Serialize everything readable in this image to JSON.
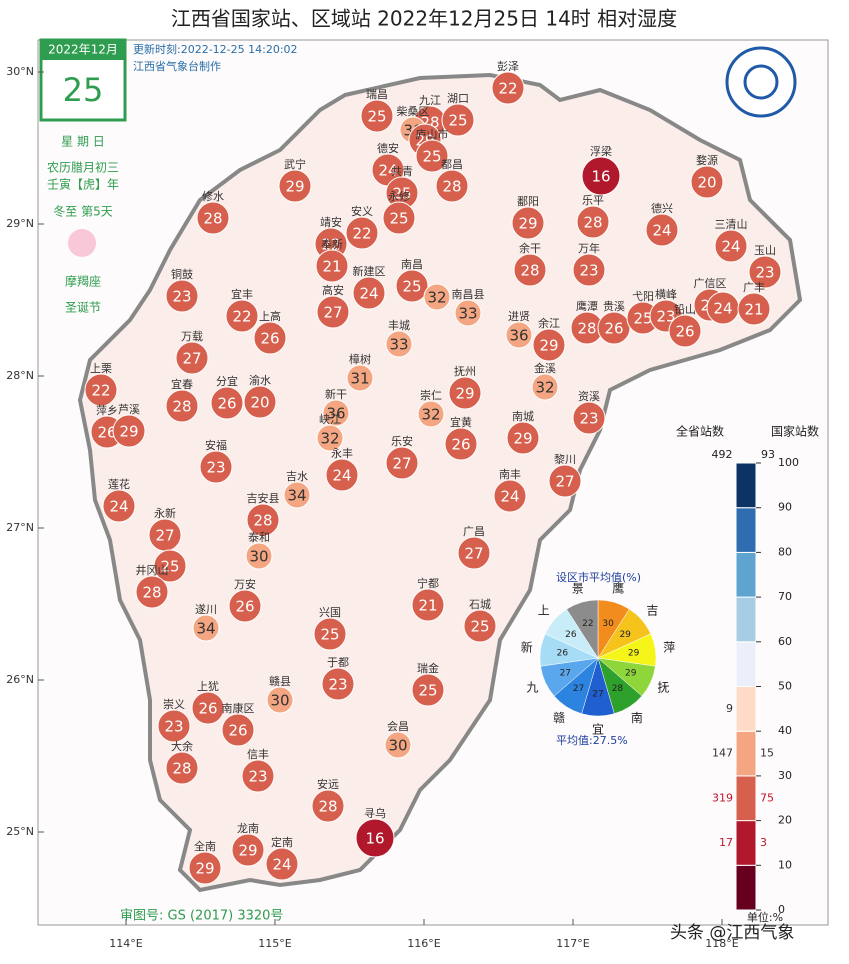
{
  "header": {
    "title": "江西省国家站、区域站   2022年12月25日 14时   相对湿度",
    "update_time": "更新时刻:2022-12-25 14:20:02",
    "producer": "江西省气象台制作"
  },
  "calendar": {
    "month": "2022年12月",
    "day": "25",
    "weekday": "星 期 日",
    "lunar": "农历腊月初三",
    "year": "壬寅【虎】年",
    "solar_term": "冬至  第5天",
    "zodiac": "摩羯座",
    "festival": "圣诞节"
  },
  "map_axes": {
    "lat_ticks": [
      {
        "value": 30,
        "label": "30°N"
      },
      {
        "value": 29,
        "label": "29°N"
      },
      {
        "value": 28,
        "label": "28°N"
      },
      {
        "value": 27,
        "label": "27°N"
      },
      {
        "value": 26,
        "label": "26°N"
      },
      {
        "value": 25,
        "label": "25°N"
      }
    ],
    "lon_ticks": [
      {
        "value": 114,
        "label": "114°E"
      },
      {
        "value": 115,
        "label": "115°E"
      },
      {
        "value": 116,
        "label": "116°E"
      },
      {
        "value": 117,
        "label": "117°E"
      },
      {
        "value": 118,
        "label": "118°E"
      }
    ]
  },
  "stations": [
    {
      "name": "彭泽",
      "value": 22
    },
    {
      "name": "瑞昌",
      "value": 25
    },
    {
      "name": "九江",
      "value": 28
    },
    {
      "name": "湖口",
      "value": 25
    },
    {
      "name": "柴桑区",
      "value": 30
    },
    {
      "value": 29
    },
    {
      "name": "庐山市",
      "value": 25
    },
    {
      "name": "德安",
      "value": 24
    },
    {
      "name": "共青",
      "value": 25
    },
    {
      "name": "都昌",
      "value": 28
    },
    {
      "name": "武宁",
      "value": 29
    },
    {
      "name": "修水",
      "value": 28
    },
    {
      "name": "永修",
      "value": 25
    },
    {
      "name": "靖安",
      "value": 22
    },
    {
      "name": "安义",
      "value": 22
    },
    {
      "name": "奉新",
      "value": 21
    },
    {
      "name": "鄱阳",
      "value": 29
    },
    {
      "name": "浮梁",
      "value": 16
    },
    {
      "name": "乐平",
      "value": 28
    },
    {
      "name": "婺源",
      "value": 20
    },
    {
      "name": "德兴",
      "value": 24
    },
    {
      "name": "三清山",
      "value": 24
    },
    {
      "name": "玉山",
      "value": 23
    },
    {
      "name": "万年",
      "value": 23
    },
    {
      "name": "余干",
      "value": 28
    },
    {
      "name": "新建区",
      "value": 24
    },
    {
      "name": "南昌",
      "value": 25
    },
    {
      "value": 32
    },
    {
      "name": "南昌县",
      "value": 33
    },
    {
      "name": "铜鼓",
      "value": 23
    },
    {
      "name": "宜丰",
      "value": 22
    },
    {
      "name": "上高",
      "value": 26
    },
    {
      "name": "高安",
      "value": 27
    },
    {
      "name": "丰城",
      "value": 33
    },
    {
      "name": "进贤",
      "value": 36
    },
    {
      "name": "余江",
      "value": 29
    },
    {
      "name": "鹰潭",
      "value": 28
    },
    {
      "name": "贵溪",
      "value": 26
    },
    {
      "name": "弋阳",
      "value": 25
    },
    {
      "name": "横峰",
      "value": 23
    },
    {
      "name": "铅山",
      "value": 26
    },
    {
      "name": "广信区",
      "value": 21
    },
    {
      "value": 24
    },
    {
      "name": "广丰",
      "value": 21
    },
    {
      "name": "万载",
      "value": 27
    },
    {
      "name": "宜春",
      "value": 28
    },
    {
      "name": "分宜",
      "value": 26
    },
    {
      "name": "渝水",
      "value": 20
    },
    {
      "name": "樟树",
      "value": 31
    },
    {
      "name": "新干",
      "value": 36
    },
    {
      "name": "抚州",
      "value": 29
    },
    {
      "name": "金溪",
      "value": 32
    },
    {
      "name": "上栗",
      "value": 22
    },
    {
      "name": "萍乡",
      "value": 26
    },
    {
      "name": "芦溪",
      "value": 29
    },
    {
      "name": "崇仁",
      "value": 32
    },
    {
      "name": "宜黄",
      "value": 26
    },
    {
      "name": "南城",
      "value": 29
    },
    {
      "name": "资溪",
      "value": 23
    },
    {
      "name": "峡江",
      "value": 32
    },
    {
      "name": "永丰",
      "value": 24
    },
    {
      "name": "乐安",
      "value": 27
    },
    {
      "name": "安福",
      "value": 23
    },
    {
      "name": "吉水",
      "value": 34
    },
    {
      "name": "南丰",
      "value": 24
    },
    {
      "name": "黎川",
      "value": 27
    },
    {
      "name": "莲花",
      "value": 24
    },
    {
      "name": "永新",
      "value": 27
    },
    {
      "name": "吉安县",
      "value": 28
    },
    {
      "name": "泰和",
      "value": 30
    },
    {
      "name": "广昌",
      "value": 27
    },
    {
      "value": 25
    },
    {
      "name": "井冈山",
      "value": 28
    },
    {
      "name": "遂川",
      "value": 34
    },
    {
      "name": "万安",
      "value": 26
    },
    {
      "name": "宁都",
      "value": 21
    },
    {
      "name": "石城",
      "value": 25
    },
    {
      "name": "兴国",
      "value": 25
    },
    {
      "name": "于都",
      "value": 23
    },
    {
      "name": "瑞金",
      "value": 25
    },
    {
      "name": "赣县",
      "value": 30
    },
    {
      "name": "上犹",
      "value": 26
    },
    {
      "name": "崇义",
      "value": 23
    },
    {
      "name": "南康区",
      "value": 26
    },
    {
      "name": "会昌",
      "value": 30
    },
    {
      "name": "大余",
      "value": 28
    },
    {
      "name": "信丰",
      "value": 23
    },
    {
      "name": "安远",
      "value": 28
    },
    {
      "name": "寻乌",
      "value": 16
    },
    {
      "name": "龙南",
      "value": 29
    },
    {
      "name": "全南",
      "value": 29
    },
    {
      "name": "定南",
      "value": 24
    }
  ],
  "pie": {
    "title": "设区市平均值(%)",
    "average": "平均值:27.5%",
    "slices": [
      {
        "name": "鹰",
        "value": 30,
        "color": "#f28c1c"
      },
      {
        "name": "吉",
        "value": 29,
        "color": "#f6c21c"
      },
      {
        "name": "萍",
        "value": 29,
        "color": "#f5f51a"
      },
      {
        "name": "抚",
        "value": 29,
        "color": "#8fd63a"
      },
      {
        "name": "南",
        "value": 28,
        "color": "#2ea02c"
      },
      {
        "name": "宜",
        "value": 27,
        "color": "#1f5fd0"
      },
      {
        "name": "赣",
        "value": 27,
        "color": "#2c83e0"
      },
      {
        "name": "九",
        "value": 27,
        "color": "#5aa7ee"
      },
      {
        "name": "新",
        "value": 26,
        "color": "#a6dcf5"
      },
      {
        "name": "上",
        "value": 26,
        "color": "#c8ecf8"
      },
      {
        "name": "景",
        "value": 22,
        "color": "#8c8c8c"
      }
    ]
  },
  "legend": {
    "all_label": "全省站数",
    "national_label": "国家站数",
    "all_total": 492,
    "national_total": 93,
    "unit": "单位:%",
    "levels": [
      0,
      10,
      20,
      30,
      40,
      50,
      60,
      70,
      80,
      90,
      100
    ],
    "colors": [
      "#67001f",
      "#b2182b",
      "#d6604d",
      "#f4a582",
      "#fddbc7",
      "#eaeff9",
      "#a6cde3",
      "#5fa3d0",
      "#2f6db0",
      "#0d3364"
    ],
    "counts_all": [
      null,
      17,
      319,
      147,
      9,
      null,
      null,
      null,
      null,
      null
    ],
    "counts_national": [
      null,
      3,
      75,
      15,
      null,
      null,
      null,
      null,
      null,
      null
    ]
  },
  "footer": {
    "approval": "审图号: GS (2017) 3320号",
    "watermark": "头条 @江西气象"
  }
}
